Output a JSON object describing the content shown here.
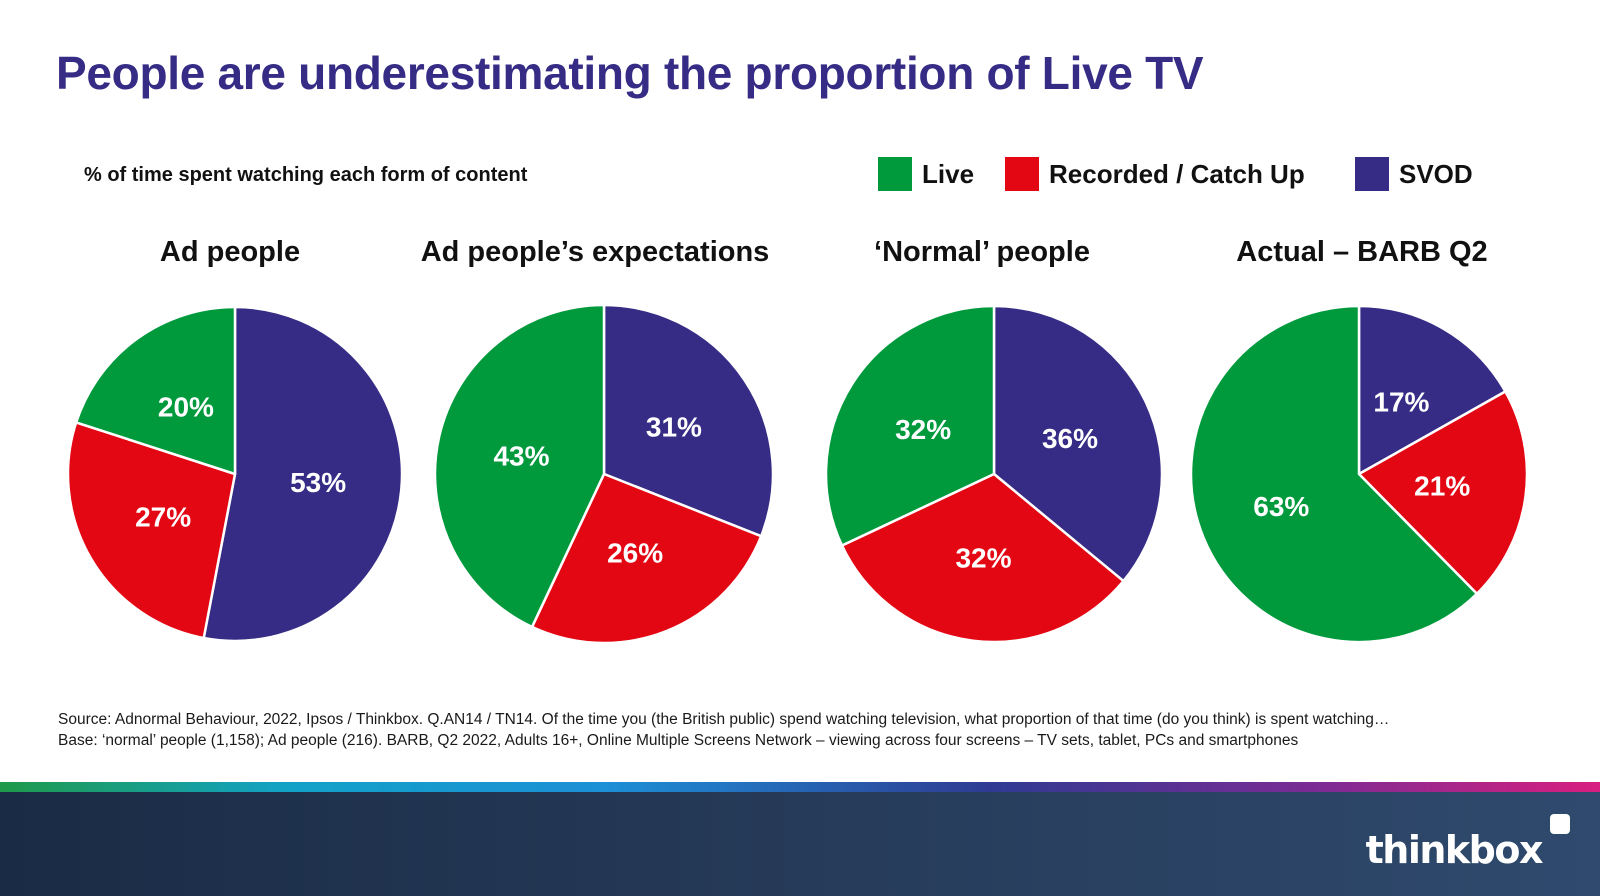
{
  "title": "People are underestimating the proportion of Live TV",
  "subtitle": "% of time spent watching each form of content",
  "legend": [
    {
      "label": "Live",
      "color": "#009a3d"
    },
    {
      "label": "Recorded / Catch Up",
      "color": "#e30613"
    },
    {
      "label": "SVOD",
      "color": "#362c85"
    }
  ],
  "chart_data": [
    {
      "type": "pie",
      "title": "Ad people",
      "slices": [
        {
          "name": "SVOD",
          "value": 53,
          "label": "53%"
        },
        {
          "name": "Recorded / Catch Up",
          "value": 27,
          "label": "27%"
        },
        {
          "name": "Live",
          "value": 20,
          "label": "20%"
        }
      ]
    },
    {
      "type": "pie",
      "title": "Ad people’s expectations",
      "slices": [
        {
          "name": "SVOD",
          "value": 31,
          "label": "31%"
        },
        {
          "name": "Recorded / Catch Up",
          "value": 26,
          "label": "26%"
        },
        {
          "name": "Live",
          "value": 43,
          "label": "43%"
        }
      ]
    },
    {
      "type": "pie",
      "title": "‘Normal’ people",
      "slices": [
        {
          "name": "SVOD",
          "value": 36,
          "label": "36%"
        },
        {
          "name": "Recorded / Catch Up",
          "value": 32,
          "label": "32%"
        },
        {
          "name": "Live",
          "value": 32,
          "label": "32%"
        }
      ]
    },
    {
      "type": "pie",
      "title": "Actual – BARB Q2",
      "slices": [
        {
          "name": "SVOD",
          "value": 17,
          "label": "17%"
        },
        {
          "name": "Recorded / Catch Up",
          "value": 21,
          "label": "21%"
        },
        {
          "name": "Live",
          "value": 63,
          "label": "63%"
        }
      ]
    }
  ],
  "source": {
    "line1": "Source: Adnormal Behaviour, 2022, Ipsos / Thinkbox. Q.AN14 / TN14. Of the time you (the British public) spend watching television, what proportion of that time (do you think) is spent watching…",
    "line2": "Base: ‘normal’ people (1,158); Ad people (216). BARB, Q2 2022, Adults 16+, Online Multiple Screens Network – viewing across four screens – TV sets, tablet, PCs and smartphones"
  },
  "logo": "thinkbox"
}
